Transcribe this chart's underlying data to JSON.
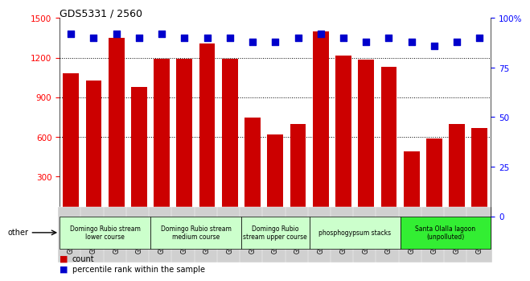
{
  "title": "GDS5331 / 2560",
  "samples": [
    "GSM832445",
    "GSM832446",
    "GSM832447",
    "GSM832448",
    "GSM832449",
    "GSM832450",
    "GSM832451",
    "GSM832452",
    "GSM832453",
    "GSM832454",
    "GSM832455",
    "GSM832441",
    "GSM832442",
    "GSM832443",
    "GSM832444",
    "GSM832437",
    "GSM832438",
    "GSM832439",
    "GSM832440"
  ],
  "counts": [
    1080,
    1030,
    1350,
    980,
    1195,
    1195,
    1310,
    1195,
    745,
    620,
    700,
    1400,
    1215,
    1185,
    1130,
    490,
    590,
    700,
    670
  ],
  "percentiles": [
    92,
    90,
    92,
    90,
    92,
    90,
    90,
    90,
    88,
    88,
    90,
    92,
    90,
    88,
    90,
    88,
    86,
    88,
    90
  ],
  "bar_color": "#cc0000",
  "dot_color": "#0000cc",
  "ylim_left": [
    0,
    1500
  ],
  "ylim_right": [
    0,
    100
  ],
  "ytick_left_labels": [
    "300",
    "600",
    "900",
    "1200",
    "1500"
  ],
  "ytick_left_vals": [
    300,
    600,
    900,
    1200,
    1500
  ],
  "ytick_right_vals": [
    0,
    25,
    50,
    75,
    100
  ],
  "ytick_right_labels": [
    "0",
    "25",
    "50",
    "75",
    "100%"
  ],
  "groups": [
    {
      "label": "Domingo Rubio stream\nlower course",
      "start": 0,
      "end": 4
    },
    {
      "label": "Domingo Rubio stream\nmedium course",
      "start": 4,
      "end": 8
    },
    {
      "label": "Domingo Rubio\nstream upper course",
      "start": 8,
      "end": 11
    },
    {
      "label": "phosphogypsum stacks",
      "start": 11,
      "end": 15
    },
    {
      "label": "Santa Olalla lagoon\n(unpolluted)",
      "start": 15,
      "end": 19
    }
  ],
  "group_colors": [
    "#ccffcc",
    "#ccffcc",
    "#ccffcc",
    "#ccffcc",
    "#33ee33"
  ],
  "other_label": "other",
  "legend_count_label": "count",
  "legend_pct_label": "percentile rank within the sample",
  "xtick_bg": "#d0d0d0",
  "grid_vals": [
    600,
    900,
    1200
  ]
}
